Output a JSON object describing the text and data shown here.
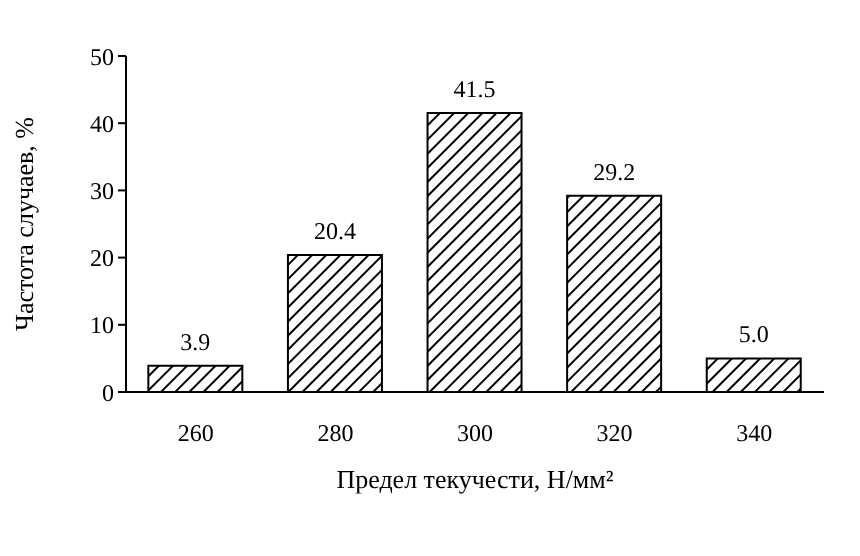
{
  "chart_data": {
    "type": "bar",
    "xlabel": "Предел текучести, Н/мм²",
    "ylabel": "Частота случаев, %",
    "categories": [
      "260",
      "280",
      "300",
      "320",
      "340"
    ],
    "values": [
      3.9,
      20.4,
      41.5,
      29.2,
      5.0
    ],
    "value_labels": [
      "3.9",
      "20.4",
      "41.5",
      "29.2",
      "5.0"
    ],
    "color": "#000000",
    "ylim": [
      0,
      50
    ],
    "yticks": [
      0,
      10,
      20,
      30,
      40,
      50
    ],
    "grid": false,
    "legend": false
  }
}
